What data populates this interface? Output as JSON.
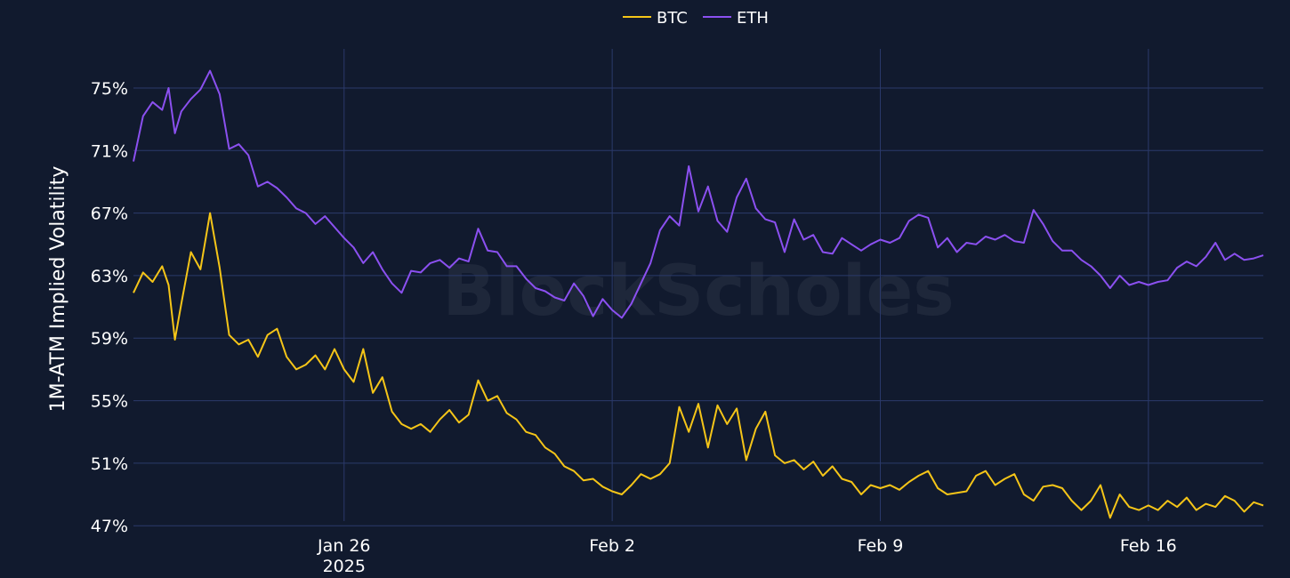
{
  "chart_data": {
    "type": "line",
    "ylabel": "1M-ATM Implied Volatility",
    "watermark": "BlockScholes",
    "x_ticks": [
      {
        "date": "2025-01-26",
        "label": "Jan 26",
        "sublabel": "2025"
      },
      {
        "date": "2025-02-02",
        "label": "Feb 2",
        "sublabel": ""
      },
      {
        "date": "2025-02-09",
        "label": "Feb 9",
        "sublabel": ""
      },
      {
        "date": "2025-02-16",
        "label": "Feb 16",
        "sublabel": ""
      }
    ],
    "y_ticks": [
      {
        "value": 47,
        "label": "47%"
      },
      {
        "value": 51,
        "label": "51%"
      },
      {
        "value": 55,
        "label": "55%"
      },
      {
        "value": 59,
        "label": "59%"
      },
      {
        "value": 63,
        "label": "63%"
      },
      {
        "value": 67,
        "label": "67%"
      },
      {
        "value": 71,
        "label": "71%"
      },
      {
        "value": 75,
        "label": "75%"
      }
    ],
    "xlim": [
      "2025-01-20T12:00",
      "2025-02-19T00:00"
    ],
    "ylim": [
      46.5,
      77.5
    ],
    "grid": true,
    "legend_position": "top-center",
    "series": [
      {
        "name": "BTC",
        "color": "#f5c518",
        "points": [
          [
            "2025-01-20T12:00",
            61.9
          ],
          [
            "2025-01-20T18:00",
            63.2
          ],
          [
            "2025-01-21T00:00",
            62.6
          ],
          [
            "2025-01-21T06:00",
            63.6
          ],
          [
            "2025-01-21T10:00",
            62.4
          ],
          [
            "2025-01-21T14:00",
            58.9
          ],
          [
            "2025-01-21T18:00",
            61.2
          ],
          [
            "2025-01-22T00:00",
            64.5
          ],
          [
            "2025-01-22T06:00",
            63.4
          ],
          [
            "2025-01-22T12:00",
            67.0
          ],
          [
            "2025-01-22T18:00",
            63.5
          ],
          [
            "2025-01-23T00:00",
            59.2
          ],
          [
            "2025-01-23T06:00",
            58.6
          ],
          [
            "2025-01-23T12:00",
            58.9
          ],
          [
            "2025-01-23T18:00",
            57.8
          ],
          [
            "2025-01-24T00:00",
            59.2
          ],
          [
            "2025-01-24T06:00",
            59.6
          ],
          [
            "2025-01-24T12:00",
            57.8
          ],
          [
            "2025-01-24T18:00",
            57.0
          ],
          [
            "2025-01-25T00:00",
            57.3
          ],
          [
            "2025-01-25T06:00",
            57.9
          ],
          [
            "2025-01-25T12:00",
            57.0
          ],
          [
            "2025-01-25T18:00",
            58.3
          ],
          [
            "2025-01-26T00:00",
            57.0
          ],
          [
            "2025-01-26T06:00",
            56.2
          ],
          [
            "2025-01-26T12:00",
            58.3
          ],
          [
            "2025-01-26T18:00",
            55.5
          ],
          [
            "2025-01-27T00:00",
            56.5
          ],
          [
            "2025-01-27T06:00",
            54.3
          ],
          [
            "2025-01-27T12:00",
            53.5
          ],
          [
            "2025-01-27T18:00",
            53.2
          ],
          [
            "2025-01-28T00:00",
            53.5
          ],
          [
            "2025-01-28T06:00",
            53.0
          ],
          [
            "2025-01-28T12:00",
            53.8
          ],
          [
            "2025-01-28T18:00",
            54.4
          ],
          [
            "2025-01-29T00:00",
            53.6
          ],
          [
            "2025-01-29T06:00",
            54.1
          ],
          [
            "2025-01-29T12:00",
            56.3
          ],
          [
            "2025-01-29T18:00",
            55.0
          ],
          [
            "2025-01-30T00:00",
            55.3
          ],
          [
            "2025-01-30T06:00",
            54.2
          ],
          [
            "2025-01-30T12:00",
            53.8
          ],
          [
            "2025-01-30T18:00",
            53.0
          ],
          [
            "2025-01-31T00:00",
            52.8
          ],
          [
            "2025-01-31T06:00",
            52.0
          ],
          [
            "2025-01-31T12:00",
            51.6
          ],
          [
            "2025-01-31T18:00",
            50.8
          ],
          [
            "2025-02-01T00:00",
            50.5
          ],
          [
            "2025-02-01T06:00",
            49.9
          ],
          [
            "2025-02-01T12:00",
            50.0
          ],
          [
            "2025-02-01T18:00",
            49.5
          ],
          [
            "2025-02-02T00:00",
            49.2
          ],
          [
            "2025-02-02T06:00",
            49.0
          ],
          [
            "2025-02-02T12:00",
            49.6
          ],
          [
            "2025-02-02T18:00",
            50.3
          ],
          [
            "2025-02-03T00:00",
            50.0
          ],
          [
            "2025-02-03T06:00",
            50.3
          ],
          [
            "2025-02-03T12:00",
            51.0
          ],
          [
            "2025-02-03T18:00",
            54.6
          ],
          [
            "2025-02-04T00:00",
            53.0
          ],
          [
            "2025-02-04T06:00",
            54.8
          ],
          [
            "2025-02-04T12:00",
            52.0
          ],
          [
            "2025-02-04T18:00",
            54.7
          ],
          [
            "2025-02-05T00:00",
            53.5
          ],
          [
            "2025-02-05T06:00",
            54.5
          ],
          [
            "2025-02-05T12:00",
            51.2
          ],
          [
            "2025-02-05T18:00",
            53.2
          ],
          [
            "2025-02-06T00:00",
            54.3
          ],
          [
            "2025-02-06T06:00",
            51.5
          ],
          [
            "2025-02-06T12:00",
            51.0
          ],
          [
            "2025-02-06T18:00",
            51.2
          ],
          [
            "2025-02-07T00:00",
            50.6
          ],
          [
            "2025-02-07T06:00",
            51.1
          ],
          [
            "2025-02-07T12:00",
            50.2
          ],
          [
            "2025-02-07T18:00",
            50.8
          ],
          [
            "2025-02-08T00:00",
            50.0
          ],
          [
            "2025-02-08T06:00",
            49.8
          ],
          [
            "2025-02-08T12:00",
            49.0
          ],
          [
            "2025-02-08T18:00",
            49.6
          ],
          [
            "2025-02-09T00:00",
            49.4
          ],
          [
            "2025-02-09T06:00",
            49.6
          ],
          [
            "2025-02-09T12:00",
            49.3
          ],
          [
            "2025-02-09T18:00",
            49.8
          ],
          [
            "2025-02-10T00:00",
            50.2
          ],
          [
            "2025-02-10T06:00",
            50.5
          ],
          [
            "2025-02-10T12:00",
            49.4
          ],
          [
            "2025-02-10T18:00",
            49.0
          ],
          [
            "2025-02-11T00:00",
            49.1
          ],
          [
            "2025-02-11T06:00",
            49.2
          ],
          [
            "2025-02-11T12:00",
            50.2
          ],
          [
            "2025-02-11T18:00",
            50.5
          ],
          [
            "2025-02-12T00:00",
            49.6
          ],
          [
            "2025-02-12T06:00",
            50.0
          ],
          [
            "2025-02-12T12:00",
            50.3
          ],
          [
            "2025-02-12T18:00",
            49.0
          ],
          [
            "2025-02-13T00:00",
            48.6
          ],
          [
            "2025-02-13T06:00",
            49.5
          ],
          [
            "2025-02-13T12:00",
            49.6
          ],
          [
            "2025-02-13T18:00",
            49.4
          ],
          [
            "2025-02-14T00:00",
            48.6
          ],
          [
            "2025-02-14T06:00",
            48.0
          ],
          [
            "2025-02-14T12:00",
            48.6
          ],
          [
            "2025-02-14T18:00",
            49.6
          ],
          [
            "2025-02-15T00:00",
            47.5
          ],
          [
            "2025-02-15T06:00",
            49.0
          ],
          [
            "2025-02-15T12:00",
            48.2
          ],
          [
            "2025-02-15T18:00",
            48.0
          ],
          [
            "2025-02-16T00:00",
            48.3
          ],
          [
            "2025-02-16T06:00",
            48.0
          ],
          [
            "2025-02-16T12:00",
            48.6
          ],
          [
            "2025-02-16T18:00",
            48.2
          ],
          [
            "2025-02-17T00:00",
            48.8
          ],
          [
            "2025-02-17T06:00",
            48.0
          ],
          [
            "2025-02-17T12:00",
            48.4
          ],
          [
            "2025-02-17T18:00",
            48.2
          ],
          [
            "2025-02-18T00:00",
            48.9
          ],
          [
            "2025-02-18T06:00",
            48.6
          ],
          [
            "2025-02-18T12:00",
            47.9
          ],
          [
            "2025-02-18T18:00",
            48.5
          ],
          [
            "2025-02-19T00:00",
            48.3
          ]
        ]
      },
      {
        "name": "ETH",
        "color": "#8b50f0",
        "points": [
          [
            "2025-01-20T12:00",
            70.3
          ],
          [
            "2025-01-20T18:00",
            73.2
          ],
          [
            "2025-01-21T00:00",
            74.1
          ],
          [
            "2025-01-21T06:00",
            73.6
          ],
          [
            "2025-01-21T10:00",
            75.0
          ],
          [
            "2025-01-21T14:00",
            72.1
          ],
          [
            "2025-01-21T18:00",
            73.5
          ],
          [
            "2025-01-22T00:00",
            74.3
          ],
          [
            "2025-01-22T06:00",
            74.9
          ],
          [
            "2025-01-22T12:00",
            76.1
          ],
          [
            "2025-01-22T18:00",
            74.6
          ],
          [
            "2025-01-23T00:00",
            71.1
          ],
          [
            "2025-01-23T06:00",
            71.4
          ],
          [
            "2025-01-23T12:00",
            70.7
          ],
          [
            "2025-01-23T18:00",
            68.7
          ],
          [
            "2025-01-24T00:00",
            69.0
          ],
          [
            "2025-01-24T06:00",
            68.6
          ],
          [
            "2025-01-24T12:00",
            68.0
          ],
          [
            "2025-01-24T18:00",
            67.3
          ],
          [
            "2025-01-25T00:00",
            67.0
          ],
          [
            "2025-01-25T06:00",
            66.3
          ],
          [
            "2025-01-25T12:00",
            66.8
          ],
          [
            "2025-01-25T18:00",
            66.1
          ],
          [
            "2025-01-26T00:00",
            65.4
          ],
          [
            "2025-01-26T06:00",
            64.8
          ],
          [
            "2025-01-26T12:00",
            63.8
          ],
          [
            "2025-01-26T18:00",
            64.5
          ],
          [
            "2025-01-27T00:00",
            63.4
          ],
          [
            "2025-01-27T06:00",
            62.5
          ],
          [
            "2025-01-27T12:00",
            61.9
          ],
          [
            "2025-01-27T18:00",
            63.3
          ],
          [
            "2025-01-28T00:00",
            63.2
          ],
          [
            "2025-01-28T06:00",
            63.8
          ],
          [
            "2025-01-28T12:00",
            64.0
          ],
          [
            "2025-01-28T18:00",
            63.5
          ],
          [
            "2025-01-29T00:00",
            64.1
          ],
          [
            "2025-01-29T06:00",
            63.9
          ],
          [
            "2025-01-29T12:00",
            66.0
          ],
          [
            "2025-01-29T18:00",
            64.6
          ],
          [
            "2025-01-30T00:00",
            64.5
          ],
          [
            "2025-01-30T06:00",
            63.6
          ],
          [
            "2025-01-30T12:00",
            63.6
          ],
          [
            "2025-01-30T18:00",
            62.8
          ],
          [
            "2025-01-31T00:00",
            62.2
          ],
          [
            "2025-01-31T06:00",
            62.0
          ],
          [
            "2025-01-31T12:00",
            61.6
          ],
          [
            "2025-01-31T18:00",
            61.4
          ],
          [
            "2025-02-01T00:00",
            62.5
          ],
          [
            "2025-02-01T06:00",
            61.7
          ],
          [
            "2025-02-01T12:00",
            60.4
          ],
          [
            "2025-02-01T18:00",
            61.5
          ],
          [
            "2025-02-02T00:00",
            60.8
          ],
          [
            "2025-02-02T06:00",
            60.3
          ],
          [
            "2025-02-02T12:00",
            61.2
          ],
          [
            "2025-02-02T18:00",
            62.5
          ],
          [
            "2025-02-03T00:00",
            63.8
          ],
          [
            "2025-02-03T06:00",
            65.9
          ],
          [
            "2025-02-03T12:00",
            66.8
          ],
          [
            "2025-02-03T18:00",
            66.2
          ],
          [
            "2025-02-04T00:00",
            70.0
          ],
          [
            "2025-02-04T06:00",
            67.1
          ],
          [
            "2025-02-04T12:00",
            68.7
          ],
          [
            "2025-02-04T18:00",
            66.5
          ],
          [
            "2025-02-05T00:00",
            65.8
          ],
          [
            "2025-02-05T06:00",
            68.0
          ],
          [
            "2025-02-05T12:00",
            69.2
          ],
          [
            "2025-02-05T18:00",
            67.3
          ],
          [
            "2025-02-06T00:00",
            66.6
          ],
          [
            "2025-02-06T06:00",
            66.4
          ],
          [
            "2025-02-06T12:00",
            64.5
          ],
          [
            "2025-02-06T18:00",
            66.6
          ],
          [
            "2025-02-07T00:00",
            65.3
          ],
          [
            "2025-02-07T06:00",
            65.6
          ],
          [
            "2025-02-07T12:00",
            64.5
          ],
          [
            "2025-02-07T18:00",
            64.4
          ],
          [
            "2025-02-08T00:00",
            65.4
          ],
          [
            "2025-02-08T06:00",
            65.0
          ],
          [
            "2025-02-08T12:00",
            64.6
          ],
          [
            "2025-02-08T18:00",
            65.0
          ],
          [
            "2025-02-09T00:00",
            65.3
          ],
          [
            "2025-02-09T06:00",
            65.1
          ],
          [
            "2025-02-09T12:00",
            65.4
          ],
          [
            "2025-02-09T18:00",
            66.5
          ],
          [
            "2025-02-10T00:00",
            66.9
          ],
          [
            "2025-02-10T06:00",
            66.7
          ],
          [
            "2025-02-10T12:00",
            64.8
          ],
          [
            "2025-02-10T18:00",
            65.4
          ],
          [
            "2025-02-11T00:00",
            64.5
          ],
          [
            "2025-02-11T06:00",
            65.1
          ],
          [
            "2025-02-11T12:00",
            65.0
          ],
          [
            "2025-02-11T18:00",
            65.5
          ],
          [
            "2025-02-12T00:00",
            65.3
          ],
          [
            "2025-02-12T06:00",
            65.6
          ],
          [
            "2025-02-12T12:00",
            65.2
          ],
          [
            "2025-02-12T18:00",
            65.1
          ],
          [
            "2025-02-13T00:00",
            67.2
          ],
          [
            "2025-02-13T06:00",
            66.3
          ],
          [
            "2025-02-13T12:00",
            65.2
          ],
          [
            "2025-02-13T18:00",
            64.6
          ],
          [
            "2025-02-14T00:00",
            64.6
          ],
          [
            "2025-02-14T06:00",
            64.0
          ],
          [
            "2025-02-14T12:00",
            63.6
          ],
          [
            "2025-02-14T18:00",
            63.0
          ],
          [
            "2025-02-15T00:00",
            62.2
          ],
          [
            "2025-02-15T06:00",
            63.0
          ],
          [
            "2025-02-15T12:00",
            62.4
          ],
          [
            "2025-02-15T18:00",
            62.6
          ],
          [
            "2025-02-16T00:00",
            62.4
          ],
          [
            "2025-02-16T06:00",
            62.6
          ],
          [
            "2025-02-16T12:00",
            62.7
          ],
          [
            "2025-02-16T18:00",
            63.5
          ],
          [
            "2025-02-17T00:00",
            63.9
          ],
          [
            "2025-02-17T06:00",
            63.6
          ],
          [
            "2025-02-17T12:00",
            64.2
          ],
          [
            "2025-02-17T18:00",
            65.1
          ],
          [
            "2025-02-18T00:00",
            64.0
          ],
          [
            "2025-02-18T06:00",
            64.4
          ],
          [
            "2025-02-18T12:00",
            64.0
          ],
          [
            "2025-02-18T18:00",
            64.1
          ],
          [
            "2025-02-19T00:00",
            64.3
          ]
        ]
      }
    ]
  }
}
